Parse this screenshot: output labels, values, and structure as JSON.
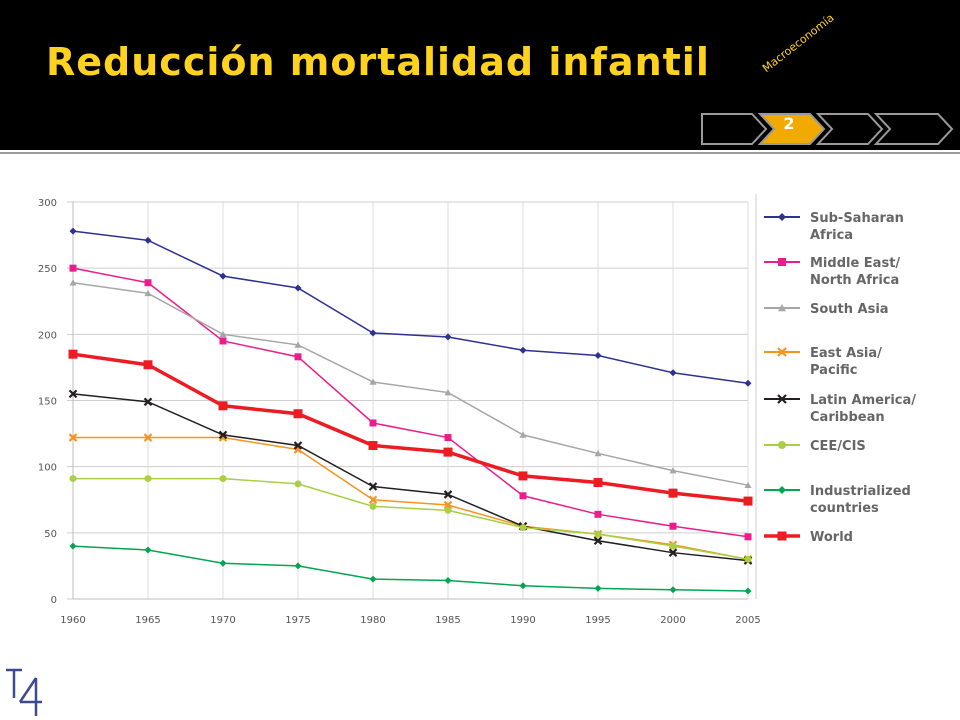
{
  "slide": {
    "title": "Reducción mortalidad infantil",
    "section": "Macroeconomía",
    "page": "2"
  },
  "colors": {
    "header_bg": "#000000",
    "title": "#ffd21f",
    "nav_accent": "#f2a900"
  },
  "chart_data": {
    "type": "line",
    "title": "",
    "xlabel": "",
    "ylabel": "",
    "x": [
      "1960",
      "1965",
      "1970",
      "1975",
      "1980",
      "1985",
      "1990",
      "1995",
      "2000",
      "2005"
    ],
    "ylim": [
      0,
      300
    ],
    "yticks": [
      0,
      50,
      100,
      150,
      200,
      250,
      300
    ],
    "grid": true,
    "legend_position": "right",
    "series": [
      {
        "name": "Sub-Saharan Africa",
        "label_lines": [
          "Sub-Saharan",
          "Africa"
        ],
        "color": "#2e3192",
        "marker": "diamond",
        "thick": false,
        "values": [
          278,
          271,
          244,
          235,
          201,
          198,
          188,
          184,
          171,
          163
        ]
      },
      {
        "name": "Middle East/ North Africa",
        "label_lines": [
          "Middle East/",
          "North Africa"
        ],
        "color": "#ec1c8c",
        "marker": "square",
        "thick": false,
        "values": [
          250,
          239,
          195,
          183,
          133,
          122,
          78,
          64,
          55,
          47
        ]
      },
      {
        "name": "South Asia",
        "label_lines": [
          "South Asia"
        ],
        "color": "#a6a6a6",
        "marker": "triangle",
        "thick": false,
        "values": [
          239,
          231,
          200,
          192,
          164,
          156,
          124,
          110,
          97,
          86
        ]
      },
      {
        "name": "East Asia/ Pacific",
        "label_lines": [
          "East Asia/",
          "Pacific"
        ],
        "color": "#f7941d",
        "marker": "x",
        "thick": false,
        "values": [
          122,
          122,
          122,
          113,
          75,
          71,
          55,
          49,
          41,
          30
        ]
      },
      {
        "name": "Latin America/ Caribbean",
        "label_lines": [
          "Latin America/",
          "Caribbean"
        ],
        "color": "#231f20",
        "marker": "x",
        "thick": false,
        "values": [
          155,
          149,
          124,
          116,
          85,
          79,
          55,
          44,
          35,
          29
        ]
      },
      {
        "name": "CEE/CIS",
        "label_lines": [
          "CEE/CIS"
        ],
        "color": "#a8cf45",
        "marker": "circle",
        "thick": false,
        "values": [
          91,
          91,
          91,
          87,
          70,
          67,
          54,
          49,
          40,
          30
        ]
      },
      {
        "name": "Industrialized countries",
        "label_lines": [
          "Industrialized",
          "countries"
        ],
        "color": "#00a651",
        "marker": "diamond",
        "thick": false,
        "values": [
          40,
          37,
          27,
          25,
          15,
          14,
          10,
          8,
          7,
          6
        ]
      },
      {
        "name": "World",
        "label_lines": [
          "World"
        ],
        "color": "#ed1c24",
        "marker": "square",
        "thick": true,
        "values": [
          185,
          177,
          146,
          140,
          116,
          111,
          93,
          88,
          80,
          74
        ]
      }
    ]
  }
}
